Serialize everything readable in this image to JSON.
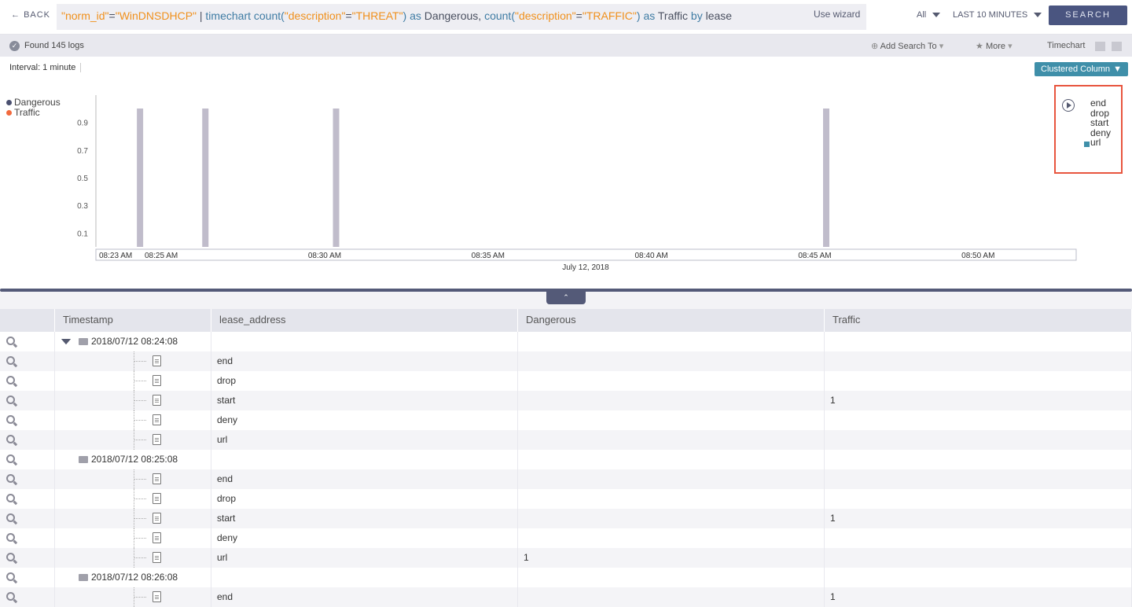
{
  "topbar": {
    "back_label": "BACK",
    "query": [
      {
        "t": "\"norm_id\"",
        "c": "str"
      },
      {
        "t": "=",
        "c": "plain"
      },
      {
        "t": "\"WinDNSDHCP\"",
        "c": "str"
      },
      {
        "t": " | ",
        "c": "plain"
      },
      {
        "t": "timechart count(",
        "c": "kw"
      },
      {
        "t": "\"description\"",
        "c": "str"
      },
      {
        "t": "=",
        "c": "plain"
      },
      {
        "t": "\"THREAT\"",
        "c": "str"
      },
      {
        "t": ") ",
        "c": "kw"
      },
      {
        "t": "as",
        "c": "kw"
      },
      {
        "t": " Dangerous, ",
        "c": "plain"
      },
      {
        "t": "count(",
        "c": "kw"
      },
      {
        "t": "\"description\"",
        "c": "str"
      },
      {
        "t": "=",
        "c": "plain"
      },
      {
        "t": "\"TRAFFIC\"",
        "c": "str"
      },
      {
        "t": ") ",
        "c": "kw"
      },
      {
        "t": "as",
        "c": "kw"
      },
      {
        "t": " Traffic ",
        "c": "plain"
      },
      {
        "t": "by",
        "c": "kw"
      },
      {
        "t": " lease",
        "c": "plain"
      }
    ],
    "wizard_label": "Use wizard",
    "repo_select": "All",
    "time_select": "LAST 10 MINUTES",
    "search_label": "SEARCH"
  },
  "statusbar": {
    "found": "Found 145 logs",
    "add_search": "Add Search To",
    "more": "More",
    "view": "Timechart"
  },
  "interval": "Interval: 1 minute",
  "chart_type_select": "Clustered Column",
  "series_values": [
    "end",
    "drop",
    "start",
    "deny",
    "url"
  ],
  "colors": {
    "dangerous": "#4a5070",
    "traffic": "#f26a3d",
    "bar": "#c0bccb",
    "accent": "#3f8fa9",
    "search": "#4a5580"
  },
  "chart_data": {
    "type": "bar",
    "series": [
      {
        "name": "Dangerous",
        "color": "#4a5070"
      },
      {
        "name": "Traffic",
        "color": "#f26a3d"
      }
    ],
    "bars": [
      {
        "x": "08:24",
        "y": 1
      },
      {
        "x": "08:26",
        "y": 1
      },
      {
        "x": "08:30",
        "y": 1
      },
      {
        "x": "08:45",
        "y": 1
      }
    ],
    "xlim": [
      "08:23",
      "08:53"
    ],
    "ylim": [
      0,
      1
    ],
    "yticks": [
      "0.1",
      "0.3",
      "0.5",
      "0.7",
      "0.9"
    ],
    "xticks": [
      "08:23 AM",
      "08:25 AM",
      "08:30 AM",
      "08:35 AM",
      "08:40 AM",
      "08:45 AM",
      "08:50 AM"
    ],
    "xlabel": "July 12, 2018",
    "legend": "top-left"
  },
  "table": {
    "headers": [
      "Timestamp",
      "lease_address",
      "Dangerous",
      "Traffic"
    ],
    "groups": [
      {
        "timestamp": "2018/07/12 08:24:08",
        "rows": [
          {
            "lease": "end",
            "dangerous": "",
            "traffic": ""
          },
          {
            "lease": "drop",
            "dangerous": "",
            "traffic": ""
          },
          {
            "lease": "start",
            "dangerous": "",
            "traffic": "1"
          },
          {
            "lease": "deny",
            "dangerous": "",
            "traffic": ""
          },
          {
            "lease": "url",
            "dangerous": "",
            "traffic": ""
          }
        ]
      },
      {
        "timestamp": "2018/07/12 08:25:08",
        "rows": [
          {
            "lease": "end",
            "dangerous": "",
            "traffic": ""
          },
          {
            "lease": "drop",
            "dangerous": "",
            "traffic": ""
          },
          {
            "lease": "start",
            "dangerous": "",
            "traffic": "1"
          },
          {
            "lease": "deny",
            "dangerous": "",
            "traffic": ""
          },
          {
            "lease": "url",
            "dangerous": "1",
            "traffic": ""
          }
        ]
      },
      {
        "timestamp": "2018/07/12 08:26:08",
        "rows": [
          {
            "lease": "end",
            "dangerous": "",
            "traffic": "1"
          }
        ]
      }
    ]
  }
}
